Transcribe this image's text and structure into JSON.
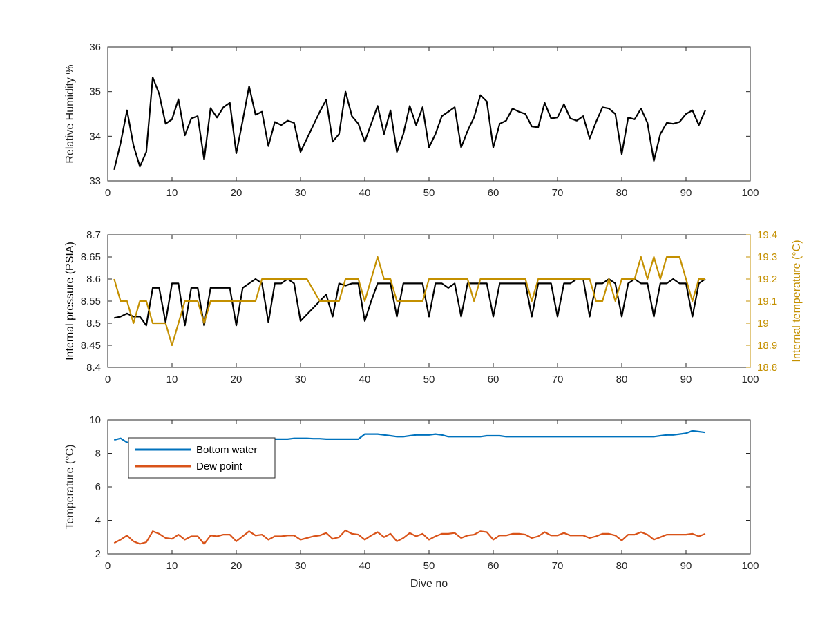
{
  "colors": {
    "black_series": "#000000",
    "gold_series": "#C49000",
    "blue_series": "#0072BD",
    "orange_series": "#D95319",
    "axis": "#262626"
  },
  "chart_data": [
    {
      "type": "line",
      "id": "humidity",
      "xlabel": "",
      "ylabel": "Relative Humidity %",
      "xlim": [
        0,
        100
      ],
      "ylim": [
        33,
        36
      ],
      "xticks": [
        0,
        10,
        20,
        30,
        40,
        50,
        60,
        70,
        80,
        90,
        100
      ],
      "yticks": [
        33,
        34,
        35,
        36
      ],
      "grid": false,
      "series": [
        {
          "color": "#000000",
          "x": [
            1,
            2,
            3,
            4,
            5,
            6,
            7,
            8,
            9,
            10,
            11,
            12,
            13,
            14,
            15,
            16,
            17,
            18,
            19,
            20,
            21,
            22,
            23,
            24,
            25,
            26,
            27,
            28,
            29,
            30,
            31,
            32,
            33,
            34,
            35,
            36,
            37,
            38,
            39,
            40,
            41,
            42,
            43,
            44,
            45,
            46,
            47,
            48,
            49,
            50,
            51,
            52,
            53,
            54,
            55,
            56,
            57,
            58,
            59,
            60,
            61,
            62,
            63,
            64,
            65,
            66,
            67,
            68,
            69,
            70,
            71,
            72,
            73,
            74,
            75,
            76,
            77,
            78,
            79,
            80,
            81,
            82,
            83,
            84,
            85,
            86,
            87,
            88,
            89,
            90,
            91,
            92,
            93
          ],
          "values": [
            33.25,
            33.85,
            34.58,
            33.8,
            33.32,
            33.65,
            35.32,
            34.95,
            34.28,
            34.38,
            34.83,
            34.02,
            34.4,
            34.45,
            33.48,
            34.63,
            34.42,
            34.65,
            34.75,
            33.62,
            34.35,
            35.12,
            34.48,
            34.55,
            33.78,
            34.32,
            34.25,
            34.35,
            34.3,
            33.65,
            33.95,
            34.25,
            34.55,
            34.82,
            33.88,
            34.05,
            35.0,
            34.45,
            34.28,
            33.88,
            34.28,
            34.68,
            34.05,
            34.58,
            33.65,
            34.05,
            34.68,
            34.25,
            34.65,
            33.75,
            34.05,
            34.45,
            34.55,
            34.65,
            33.75,
            34.12,
            34.42,
            34.92,
            34.78,
            33.75,
            34.28,
            34.35,
            34.62,
            34.55,
            34.5,
            34.22,
            34.2,
            34.75,
            34.4,
            34.42,
            34.72,
            34.4,
            34.35,
            34.45,
            33.95,
            34.32,
            34.65,
            34.62,
            34.5,
            33.6,
            34.42,
            34.38,
            34.62,
            34.3,
            33.45,
            34.05,
            34.3,
            34.28,
            34.32,
            34.5,
            34.58,
            34.25,
            34.58
          ]
        }
      ]
    },
    {
      "type": "line",
      "id": "pressure_temp",
      "xlabel": "",
      "ylabel": "Internal pressure (PSIA)",
      "y2label": "Internal temperature (°C)",
      "xlim": [
        0,
        100
      ],
      "ylim": [
        8.4,
        8.7
      ],
      "y2lim": [
        18.8,
        19.4
      ],
      "xticks": [
        0,
        10,
        20,
        30,
        40,
        50,
        60,
        70,
        80,
        90,
        100
      ],
      "yticks": [
        8.4,
        8.45,
        8.5,
        8.55,
        8.6,
        8.65,
        8.7
      ],
      "y2ticks": [
        18.8,
        18.9,
        19,
        19.1,
        19.2,
        19.3,
        19.4
      ],
      "grid": false,
      "series": [
        {
          "axis": "left",
          "color": "#000000",
          "x": [
            1,
            2,
            3,
            4,
            5,
            6,
            7,
            8,
            9,
            10,
            11,
            12,
            13,
            14,
            15,
            16,
            17,
            18,
            19,
            20,
            21,
            22,
            23,
            24,
            25,
            26,
            27,
            28,
            29,
            30,
            31,
            32,
            33,
            34,
            35,
            36,
            37,
            38,
            39,
            40,
            41,
            42,
            43,
            44,
            45,
            46,
            47,
            48,
            49,
            50,
            51,
            52,
            53,
            54,
            55,
            56,
            57,
            58,
            59,
            60,
            61,
            62,
            63,
            64,
            65,
            66,
            67,
            68,
            69,
            70,
            71,
            72,
            73,
            74,
            75,
            76,
            77,
            78,
            79,
            80,
            81,
            82,
            83,
            84,
            85,
            86,
            87,
            88,
            89,
            90,
            91,
            92,
            93
          ],
          "values": [
            8.512,
            8.515,
            8.522,
            8.515,
            8.515,
            8.495,
            8.58,
            8.58,
            8.502,
            8.59,
            8.59,
            8.495,
            8.58,
            8.58,
            8.495,
            8.58,
            8.58,
            8.58,
            8.58,
            8.495,
            8.58,
            8.59,
            8.6,
            8.59,
            8.502,
            8.59,
            8.59,
            8.6,
            8.59,
            8.505,
            8.52,
            8.535,
            8.55,
            8.565,
            8.515,
            8.59,
            8.585,
            8.59,
            8.59,
            8.505,
            8.55,
            8.59,
            8.59,
            8.59,
            8.515,
            8.59,
            8.59,
            8.59,
            8.59,
            8.515,
            8.59,
            8.59,
            8.58,
            8.59,
            8.515,
            8.59,
            8.59,
            8.59,
            8.59,
            8.515,
            8.59,
            8.59,
            8.59,
            8.59,
            8.59,
            8.515,
            8.59,
            8.59,
            8.59,
            8.515,
            8.59,
            8.59,
            8.6,
            8.6,
            8.515,
            8.59,
            8.59,
            8.6,
            8.59,
            8.515,
            8.59,
            8.6,
            8.59,
            8.59,
            8.515,
            8.59,
            8.59,
            8.6,
            8.59,
            8.59,
            8.515,
            8.59,
            8.6
          ]
        },
        {
          "axis": "right",
          "color": "#C49000",
          "x": [
            1,
            2,
            3,
            4,
            5,
            6,
            7,
            8,
            9,
            10,
            11,
            12,
            13,
            14,
            15,
            16,
            17,
            18,
            19,
            20,
            21,
            22,
            23,
            24,
            25,
            26,
            27,
            28,
            29,
            30,
            31,
            32,
            33,
            34,
            35,
            36,
            37,
            38,
            39,
            40,
            41,
            42,
            43,
            44,
            45,
            46,
            47,
            48,
            49,
            50,
            51,
            52,
            53,
            54,
            55,
            56,
            57,
            58,
            59,
            60,
            61,
            62,
            63,
            64,
            65,
            66,
            67,
            68,
            69,
            70,
            71,
            72,
            73,
            74,
            75,
            76,
            77,
            78,
            79,
            80,
            81,
            82,
            83,
            84,
            85,
            86,
            87,
            88,
            89,
            90,
            91,
            92,
            93
          ],
          "values": [
            19.2,
            19.1,
            19.1,
            19.0,
            19.1,
            19.1,
            19.0,
            19.0,
            19.0,
            18.9,
            19.0,
            19.1,
            19.1,
            19.1,
            19.0,
            19.1,
            19.1,
            19.1,
            19.1,
            19.1,
            19.1,
            19.1,
            19.1,
            19.2,
            19.2,
            19.2,
            19.2,
            19.2,
            19.2,
            19.2,
            19.2,
            19.15,
            19.1,
            19.1,
            19.1,
            19.1,
            19.2,
            19.2,
            19.2,
            19.1,
            19.2,
            19.3,
            19.2,
            19.2,
            19.1,
            19.1,
            19.1,
            19.1,
            19.1,
            19.2,
            19.2,
            19.2,
            19.2,
            19.2,
            19.2,
            19.2,
            19.1,
            19.2,
            19.2,
            19.2,
            19.2,
            19.2,
            19.2,
            19.2,
            19.2,
            19.1,
            19.2,
            19.2,
            19.2,
            19.2,
            19.2,
            19.2,
            19.2,
            19.2,
            19.2,
            19.1,
            19.1,
            19.2,
            19.1,
            19.2,
            19.2,
            19.2,
            19.3,
            19.2,
            19.3,
            19.2,
            19.3,
            19.3,
            19.3,
            19.2,
            19.1,
            19.2,
            19.2
          ]
        }
      ]
    },
    {
      "type": "line",
      "id": "temperature",
      "xlabel": "Dive no",
      "ylabel": "Temperature (°C)",
      "xlim": [
        0,
        100
      ],
      "ylim": [
        2,
        10
      ],
      "xticks": [
        0,
        10,
        20,
        30,
        40,
        50,
        60,
        70,
        80,
        90,
        100
      ],
      "yticks": [
        2,
        4,
        6,
        8,
        10
      ],
      "grid": false,
      "legend_position": "top-left",
      "series": [
        {
          "name": "Bottom water",
          "color": "#0072BD",
          "x": [
            1,
            2,
            3,
            4,
            5,
            6,
            7,
            8,
            9,
            10,
            11,
            12,
            13,
            14,
            15,
            16,
            17,
            18,
            19,
            20,
            21,
            22,
            23,
            24,
            25,
            26,
            27,
            28,
            29,
            30,
            31,
            32,
            33,
            34,
            35,
            36,
            37,
            38,
            39,
            40,
            41,
            42,
            43,
            44,
            45,
            46,
            47,
            48,
            49,
            50,
            51,
            52,
            53,
            54,
            55,
            56,
            57,
            58,
            59,
            60,
            61,
            62,
            63,
            64,
            65,
            66,
            67,
            68,
            69,
            70,
            71,
            72,
            73,
            74,
            75,
            76,
            77,
            78,
            79,
            80,
            81,
            82,
            83,
            84,
            85,
            86,
            87,
            88,
            89,
            90,
            91,
            92,
            93
          ],
          "values": [
            8.8,
            8.9,
            8.65,
            8.7,
            8.7,
            8.75,
            8.75,
            8.75,
            8.75,
            8.75,
            8.75,
            8.75,
            8.75,
            8.8,
            8.8,
            8.8,
            8.8,
            8.8,
            8.8,
            8.8,
            8.8,
            8.8,
            8.85,
            8.85,
            8.85,
            8.85,
            8.85,
            8.85,
            8.9,
            8.9,
            8.9,
            8.88,
            8.88,
            8.85,
            8.85,
            8.85,
            8.85,
            8.85,
            8.85,
            9.15,
            9.15,
            9.15,
            9.1,
            9.05,
            9.0,
            9.0,
            9.05,
            9.1,
            9.1,
            9.1,
            9.15,
            9.1,
            9.0,
            9.0,
            9.0,
            9.0,
            9.0,
            9.0,
            9.05,
            9.05,
            9.05,
            9.0,
            9.0,
            9.0,
            9.0,
            9.0,
            9.0,
            9.0,
            9.0,
            9.0,
            9.0,
            9.0,
            9.0,
            9.0,
            9.0,
            9.0,
            9.0,
            9.0,
            9.0,
            9.0,
            9.0,
            9.0,
            9.0,
            9.0,
            9.0,
            9.05,
            9.1,
            9.1,
            9.15,
            9.2,
            9.35,
            9.3,
            9.25
          ]
        },
        {
          "name": "Dew point",
          "color": "#D95319",
          "x": [
            1,
            2,
            3,
            4,
            5,
            6,
            7,
            8,
            9,
            10,
            11,
            12,
            13,
            14,
            15,
            16,
            17,
            18,
            19,
            20,
            21,
            22,
            23,
            24,
            25,
            26,
            27,
            28,
            29,
            30,
            31,
            32,
            33,
            34,
            35,
            36,
            37,
            38,
            39,
            40,
            41,
            42,
            43,
            44,
            45,
            46,
            47,
            48,
            49,
            50,
            51,
            52,
            53,
            54,
            55,
            56,
            57,
            58,
            59,
            60,
            61,
            62,
            63,
            64,
            65,
            66,
            67,
            68,
            69,
            70,
            71,
            72,
            73,
            74,
            75,
            76,
            77,
            78,
            79,
            80,
            81,
            82,
            83,
            84,
            85,
            86,
            87,
            88,
            89,
            90,
            91,
            92,
            93
          ],
          "values": [
            2.65,
            2.85,
            3.1,
            2.75,
            2.6,
            2.7,
            3.35,
            3.2,
            2.95,
            2.9,
            3.15,
            2.85,
            3.05,
            3.05,
            2.6,
            3.1,
            3.05,
            3.15,
            3.15,
            2.75,
            3.05,
            3.35,
            3.1,
            3.15,
            2.85,
            3.05,
            3.05,
            3.1,
            3.1,
            2.85,
            2.95,
            3.05,
            3.1,
            3.25,
            2.9,
            3.0,
            3.4,
            3.2,
            3.15,
            2.85,
            3.1,
            3.3,
            3.0,
            3.2,
            2.75,
            2.95,
            3.25,
            3.05,
            3.2,
            2.85,
            3.05,
            3.2,
            3.2,
            3.25,
            2.95,
            3.1,
            3.15,
            3.35,
            3.3,
            2.85,
            3.1,
            3.1,
            3.2,
            3.2,
            3.15,
            2.95,
            3.05,
            3.3,
            3.1,
            3.1,
            3.25,
            3.1,
            3.1,
            3.1,
            2.95,
            3.05,
            3.2,
            3.2,
            3.1,
            2.8,
            3.15,
            3.15,
            3.3,
            3.15,
            2.85,
            3.0,
            3.15,
            3.15,
            3.15,
            3.15,
            3.2,
            3.05,
            3.2
          ]
        }
      ]
    }
  ]
}
